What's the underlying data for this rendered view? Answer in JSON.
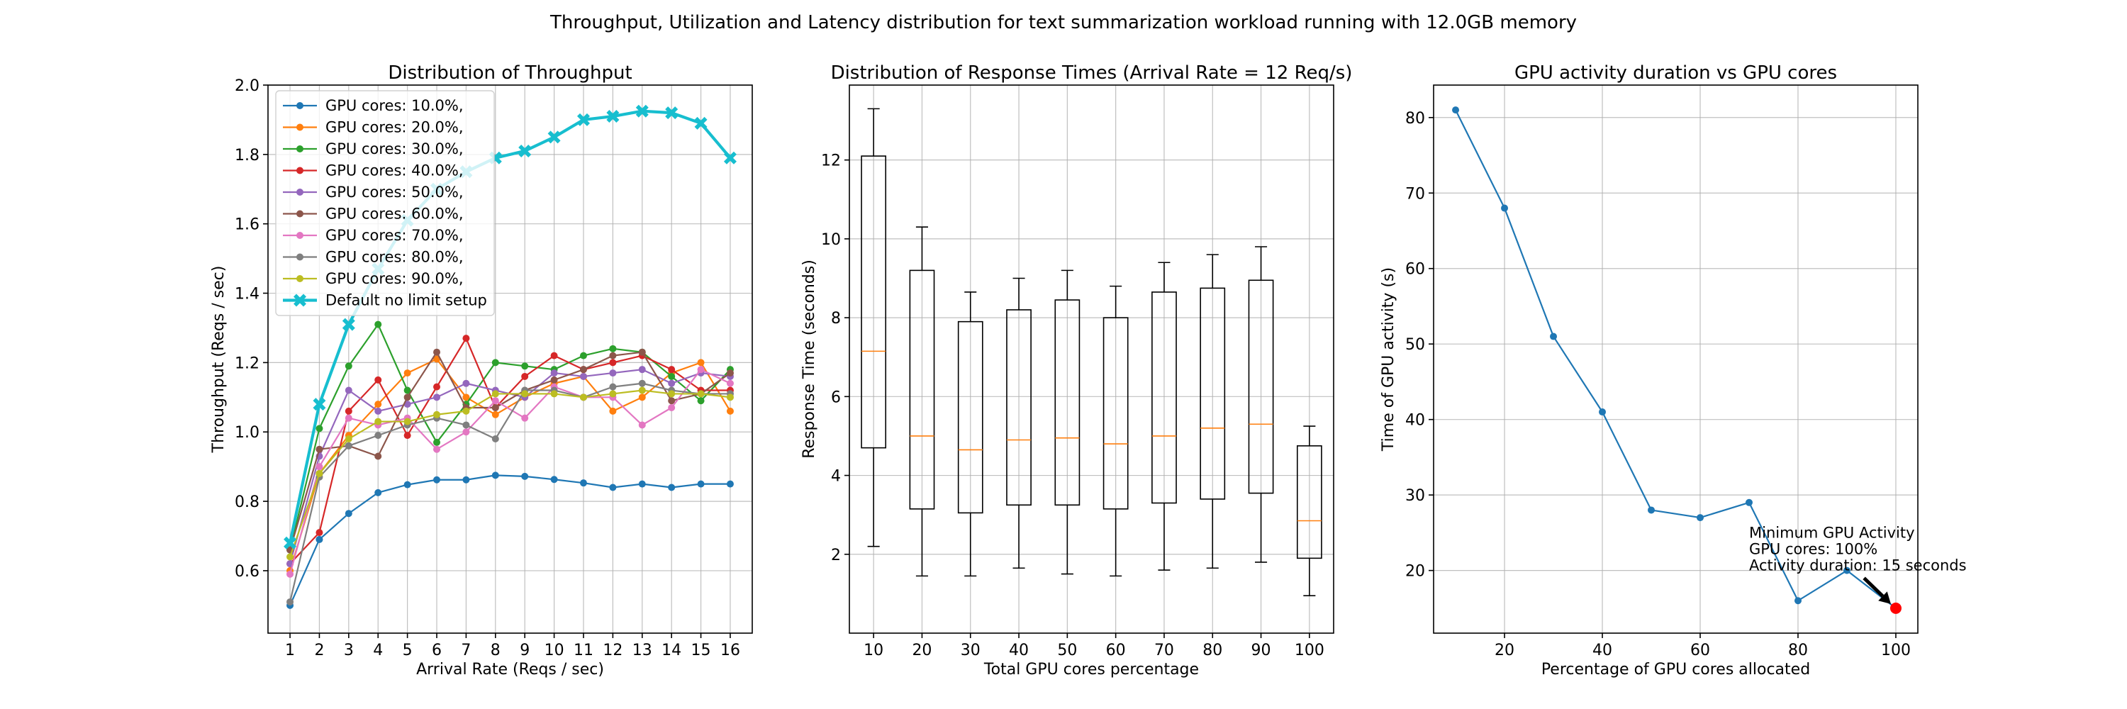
{
  "suptitle": "Throughput, Utilization and Latency distribution for text summarization workload running with 12.0GB memory",
  "chart_data": [
    {
      "type": "line",
      "title": "Distribution of Throughput",
      "xlabel": "Arrival Rate (Reqs / sec)",
      "ylabel": "Throughput (Reqs / sec)",
      "x": [
        1,
        2,
        3,
        4,
        5,
        6,
        7,
        8,
        9,
        10,
        11,
        12,
        13,
        14,
        15,
        16
      ],
      "xlim": [
        0.25,
        16.75
      ],
      "ylim": [
        0.42,
        2.0
      ],
      "yticks": [
        0.6,
        0.8,
        1.0,
        1.2,
        1.4,
        1.6,
        1.8,
        2.0
      ],
      "yticklabels": [
        "0.6",
        "0.8",
        "1.0",
        "1.2",
        "1.4",
        "1.6",
        "1.8",
        "2.0"
      ],
      "grid": true,
      "legend_position": "upper-left",
      "series": [
        {
          "name": "GPU cores: 10.0%,",
          "color": "#1f77b4",
          "marker": "circle",
          "values": [
            0.5,
            0.69,
            0.765,
            0.825,
            0.848,
            0.862,
            0.862,
            0.875,
            0.872,
            0.863,
            0.853,
            0.84,
            0.85,
            0.84,
            0.85,
            0.85
          ]
        },
        {
          "name": "GPU cores: 20.0%,",
          "color": "#ff7f0e",
          "marker": "circle",
          "values": [
            0.6,
            0.88,
            0.99,
            1.08,
            1.17,
            1.21,
            1.1,
            1.05,
            1.1,
            1.14,
            1.16,
            1.06,
            1.1,
            1.17,
            1.2,
            1.06
          ]
        },
        {
          "name": "GPU cores: 30.0%,",
          "color": "#2ca02c",
          "marker": "circle",
          "values": [
            0.66,
            1.01,
            1.19,
            1.31,
            1.12,
            0.97,
            1.08,
            1.2,
            1.19,
            1.18,
            1.22,
            1.24,
            1.23,
            1.16,
            1.09,
            1.18
          ]
        },
        {
          "name": "GPU cores: 40.0%,",
          "color": "#d62728",
          "marker": "circle",
          "values": [
            0.62,
            0.71,
            1.06,
            1.15,
            0.99,
            1.13,
            1.27,
            1.07,
            1.16,
            1.22,
            1.18,
            1.2,
            1.22,
            1.18,
            1.12,
            1.12
          ]
        },
        {
          "name": "GPU cores: 50.0%,",
          "color": "#9467bd",
          "marker": "circle",
          "values": [
            0.62,
            0.93,
            1.12,
            1.06,
            1.08,
            1.1,
            1.14,
            1.12,
            1.1,
            1.17,
            1.16,
            1.17,
            1.18,
            1.14,
            1.17,
            1.16
          ]
        },
        {
          "name": "GPU cores: 60.0%,",
          "color": "#8c564b",
          "marker": "circle",
          "values": [
            0.66,
            0.95,
            0.96,
            0.93,
            1.1,
            1.23,
            1.07,
            1.07,
            1.12,
            1.15,
            1.18,
            1.22,
            1.23,
            1.09,
            1.11,
            1.17
          ]
        },
        {
          "name": "GPU cores: 70.0%,",
          "color": "#e377c2",
          "marker": "circle",
          "values": [
            0.59,
            0.9,
            1.04,
            1.02,
            1.04,
            0.95,
            1.0,
            1.09,
            1.04,
            1.13,
            1.1,
            1.1,
            1.02,
            1.07,
            1.18,
            1.14
          ]
        },
        {
          "name": "GPU cores: 80.0%,",
          "color": "#7f7f7f",
          "marker": "circle",
          "values": [
            0.51,
            0.87,
            0.96,
            0.99,
            1.02,
            1.04,
            1.02,
            0.98,
            1.12,
            1.12,
            1.1,
            1.13,
            1.14,
            1.12,
            1.11,
            1.11
          ]
        },
        {
          "name": "GPU cores: 90.0%,",
          "color": "#bcbd22",
          "marker": "circle",
          "values": [
            0.64,
            0.88,
            0.98,
            1.03,
            1.03,
            1.05,
            1.06,
            1.11,
            1.11,
            1.11,
            1.1,
            1.11,
            1.12,
            1.11,
            1.11,
            1.1
          ]
        },
        {
          "name": "Default no limit setup",
          "color": "#17becf",
          "marker": "x",
          "thick": true,
          "values": [
            0.68,
            1.08,
            1.31,
            1.47,
            1.61,
            1.7,
            1.75,
            1.79,
            1.81,
            1.85,
            1.9,
            1.91,
            1.925,
            1.92,
            1.89,
            1.79
          ]
        }
      ]
    },
    {
      "type": "box",
      "title": "Distribution of Response Times (Arrival Rate = 12 Req/s)",
      "xlabel": "Total GPU cores percentage",
      "ylabel": "Response Time (seconds)",
      "categories": [
        "10",
        "20",
        "30",
        "40",
        "50",
        "60",
        "70",
        "80",
        "90",
        "100"
      ],
      "ylim": [
        0.0,
        13.9
      ],
      "yticks": [
        2,
        4,
        6,
        8,
        10,
        12
      ],
      "yticklabels": [
        "2",
        "4",
        "6",
        "8",
        "10",
        "12"
      ],
      "grid": true,
      "box_color": "#000000",
      "median_color": "#ff7f0e",
      "boxes": [
        {
          "whislo": 2.2,
          "q1": 4.7,
          "med": 7.15,
          "q3": 12.1,
          "whishi": 13.3
        },
        {
          "whislo": 1.45,
          "q1": 3.15,
          "med": 5.0,
          "q3": 9.2,
          "whishi": 10.3
        },
        {
          "whislo": 1.45,
          "q1": 3.05,
          "med": 4.65,
          "q3": 7.9,
          "whishi": 8.65
        },
        {
          "whislo": 1.65,
          "q1": 3.25,
          "med": 4.9,
          "q3": 8.2,
          "whishi": 9.0
        },
        {
          "whislo": 1.5,
          "q1": 3.25,
          "med": 4.95,
          "q3": 8.45,
          "whishi": 9.2
        },
        {
          "whislo": 1.45,
          "q1": 3.15,
          "med": 4.8,
          "q3": 8.0,
          "whishi": 8.8
        },
        {
          "whislo": 1.6,
          "q1": 3.3,
          "med": 5.0,
          "q3": 8.65,
          "whishi": 9.4
        },
        {
          "whislo": 1.65,
          "q1": 3.4,
          "med": 5.2,
          "q3": 8.75,
          "whishi": 9.6
        },
        {
          "whislo": 1.8,
          "q1": 3.55,
          "med": 5.3,
          "q3": 8.95,
          "whishi": 9.8
        },
        {
          "whislo": 0.95,
          "q1": 1.9,
          "med": 2.85,
          "q3": 4.75,
          "whishi": 5.25
        }
      ]
    },
    {
      "type": "line",
      "title": "GPU activity duration vs GPU cores",
      "xlabel": "Percentage of GPU cores allocated",
      "ylabel": "Time of GPU activity (s)",
      "x": [
        10,
        20,
        30,
        40,
        50,
        60,
        70,
        80,
        90,
        100
      ],
      "values": [
        81,
        68,
        51,
        41,
        28,
        27,
        29,
        16,
        20,
        15
      ],
      "xlim": [
        5.5,
        104.5
      ],
      "ylim": [
        11.7,
        84.3
      ],
      "xticks": [
        20,
        40,
        60,
        80,
        100
      ],
      "xticklabels": [
        "20",
        "40",
        "60",
        "80",
        "100"
      ],
      "yticks": [
        20,
        30,
        40,
        50,
        60,
        70,
        80
      ],
      "yticklabels": [
        "20",
        "30",
        "40",
        "50",
        "60",
        "70",
        "80"
      ],
      "grid": true,
      "color": "#1f77b4",
      "highlight": {
        "x": 100,
        "y": 15,
        "color": "#ff0000"
      },
      "annotation": {
        "lines": [
          "Minimum GPU Activity",
          "GPU cores: 100%",
          "Activity duration: 15 seconds"
        ],
        "text_x": 70,
        "text_y": 20
      }
    }
  ]
}
